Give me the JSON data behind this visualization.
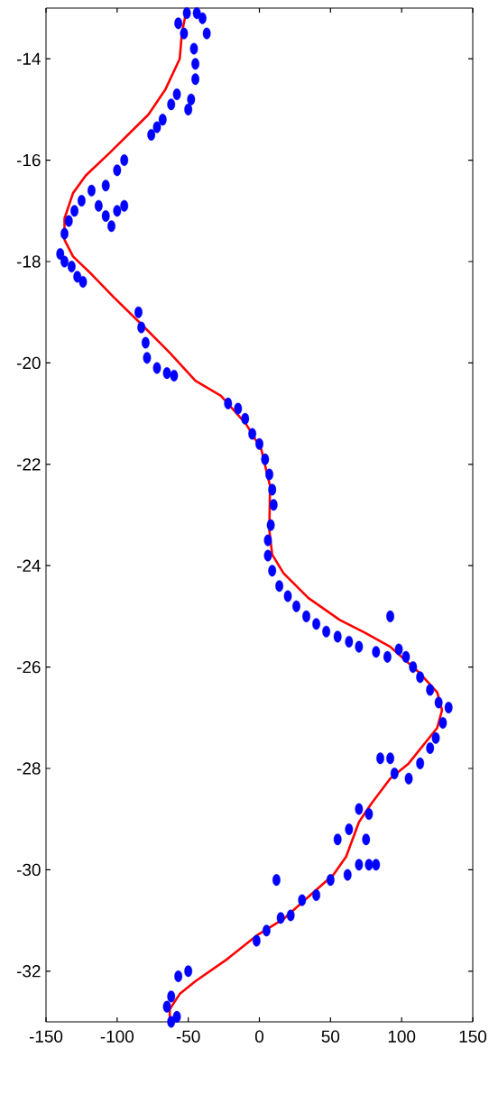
{
  "chart_data": {
    "type": "scatter",
    "xlim": [
      -150,
      150
    ],
    "ylim": [
      -33,
      -13
    ],
    "xticks": [
      -150,
      -100,
      -50,
      0,
      50,
      100,
      150
    ],
    "yticks": [
      -32,
      -30,
      -28,
      -26,
      -24,
      -22,
      -20,
      -18,
      -16,
      -14
    ],
    "series": [
      {
        "type": "scatter",
        "color": "#0000ff",
        "marker": "circle",
        "x": [
          -51,
          -44,
          -40,
          -37,
          -57,
          -53,
          -46,
          -45,
          -45,
          -48,
          -50,
          -58,
          -62,
          -68,
          -72,
          -76,
          -95,
          -100,
          -108,
          -118,
          -125,
          -130,
          -134,
          -137,
          -113,
          -108,
          -100,
          -104,
          -95,
          -140,
          -137,
          -132,
          -128,
          -124,
          -85,
          -83,
          -80,
          -79,
          -72,
          -65,
          -60,
          -22,
          -15,
          -10,
          -5,
          0,
          4,
          7,
          9,
          10,
          8,
          6,
          6,
          9,
          14,
          20,
          26,
          33,
          40,
          47,
          55,
          63,
          70,
          82,
          90,
          92,
          98,
          103,
          108,
          113,
          120,
          126,
          133,
          129,
          124,
          120,
          113,
          105,
          95,
          92,
          85,
          77,
          70,
          63,
          55,
          75,
          70,
          77,
          82,
          62,
          50,
          40,
          30,
          22,
          12,
          15,
          5,
          -2,
          -50,
          -57,
          -62,
          -65,
          -62,
          -58
        ],
        "values": [
          -13.1,
          -13.1,
          -13.2,
          -13.5,
          -13.3,
          -13.5,
          -13.8,
          -14.1,
          -14.4,
          -14.8,
          -15.0,
          -14.7,
          -14.9,
          -15.2,
          -15.35,
          -15.5,
          -16.0,
          -16.2,
          -16.5,
          -16.6,
          -16.8,
          -17.0,
          -17.2,
          -17.45,
          -16.9,
          -17.1,
          -17.0,
          -17.3,
          -16.9,
          -17.85,
          -18.0,
          -18.1,
          -18.3,
          -18.4,
          -19.0,
          -19.3,
          -19.6,
          -19.9,
          -20.1,
          -20.2,
          -20.25,
          -20.8,
          -20.9,
          -21.1,
          -21.4,
          -21.6,
          -21.9,
          -22.2,
          -22.5,
          -22.8,
          -23.2,
          -23.5,
          -23.8,
          -24.1,
          -24.4,
          -24.6,
          -24.8,
          -25.0,
          -25.15,
          -25.3,
          -25.4,
          -25.5,
          -25.6,
          -25.7,
          -25.8,
          -25.0,
          -25.65,
          -25.8,
          -26.0,
          -26.2,
          -26.45,
          -26.7,
          -26.8,
          -27.1,
          -27.4,
          -27.6,
          -27.9,
          -28.2,
          -28.1,
          -27.8,
          -27.8,
          -28.9,
          -28.8,
          -29.2,
          -29.4,
          -29.4,
          -29.9,
          -29.9,
          -29.9,
          -30.1,
          -30.2,
          -30.5,
          -30.6,
          -30.9,
          -30.2,
          -30.95,
          -31.2,
          -31.4,
          -32.0,
          -32.1,
          -32.5,
          -32.7,
          -33.0,
          -32.9
        ]
      },
      {
        "type": "line",
        "color": "#ff0000",
        "marker": "none",
        "x": [
          -51,
          -54.5,
          -56,
          -66,
          -78,
          -105,
          -122,
          -131,
          -137,
          -137,
          -131,
          -118,
          -102.5,
          -82.5,
          -63,
          -45,
          -27,
          -9.5,
          1.3,
          7.5,
          7,
          9,
          17,
          34.5,
          56.5,
          74,
          92,
          112,
          125,
          128.4,
          125,
          105,
          92,
          78.6,
          70,
          61,
          52,
          39,
          17,
          -1,
          -23,
          -45,
          -56,
          -63,
          -63
        ],
        "values": [
          -13.0,
          -13.5,
          -14.0,
          -14.6,
          -15.1,
          -15.85,
          -16.3,
          -16.65,
          -17.15,
          -17.57,
          -17.9,
          -18.25,
          -18.7,
          -19.25,
          -19.8,
          -20.35,
          -20.65,
          -21.2,
          -21.7,
          -22.43,
          -23.3,
          -23.78,
          -24.15,
          -24.64,
          -25.07,
          -25.32,
          -25.6,
          -26.1,
          -26.5,
          -26.85,
          -27.2,
          -27.9,
          -28.2,
          -28.7,
          -29.06,
          -29.74,
          -30.1,
          -30.42,
          -30.97,
          -31.28,
          -31.77,
          -32.2,
          -32.45,
          -32.75,
          -33.0
        ]
      }
    ]
  }
}
